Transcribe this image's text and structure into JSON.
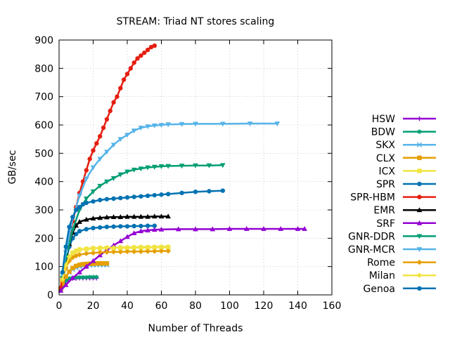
{
  "chart_data": {
    "type": "line",
    "title": "STREAM: Triad NT stores scaling",
    "xlabel": "Number of Threads",
    "ylabel": "GB/sec",
    "xlim": [
      0,
      160
    ],
    "ylim": [
      0,
      900
    ],
    "xticks": [
      0,
      20,
      40,
      60,
      80,
      100,
      120,
      140,
      160
    ],
    "yticks": [
      0,
      100,
      200,
      300,
      400,
      500,
      600,
      700,
      800,
      900
    ],
    "grid": true,
    "legend_position": "right",
    "series": [
      {
        "name": "HSW",
        "color": "#9400d3",
        "marker": "plus",
        "x": [
          1,
          2,
          4,
          6,
          8,
          10,
          12,
          14,
          16,
          18,
          20,
          22
        ],
        "y": [
          18,
          30,
          48,
          55,
          58,
          58,
          59,
          59,
          59,
          59,
          59,
          59
        ]
      },
      {
        "name": "BDW",
        "color": "#009e73",
        "marker": "star",
        "x": [
          1,
          2,
          4,
          6,
          8,
          10,
          12,
          14,
          16,
          18,
          20,
          22
        ],
        "y": [
          18,
          32,
          50,
          58,
          60,
          62,
          62,
          62,
          62,
          63,
          63,
          63
        ]
      },
      {
        "name": "SKX",
        "color": "#56b4e9",
        "marker": "x",
        "x": [
          1,
          2,
          4,
          6,
          8,
          10,
          12,
          14,
          16,
          18,
          20,
          22,
          24,
          26,
          28
        ],
        "y": [
          20,
          40,
          65,
          80,
          90,
          96,
          100,
          102,
          104,
          105,
          106,
          106,
          106,
          106,
          106
        ]
      },
      {
        "name": "CLX",
        "color": "#e69f00",
        "marker": "square",
        "x": [
          1,
          2,
          4,
          6,
          8,
          10,
          12,
          14,
          16,
          18,
          20,
          22,
          24,
          26,
          28
        ],
        "y": [
          20,
          40,
          65,
          82,
          95,
          102,
          106,
          108,
          109,
          110,
          110,
          111,
          111,
          111,
          111
        ]
      },
      {
        "name": "ICX",
        "color": "#f0e442",
        "marker": "square",
        "x": [
          2,
          4,
          6,
          8,
          10,
          12,
          16,
          20,
          24,
          28,
          32,
          36,
          40,
          44,
          48,
          52,
          56,
          60,
          64
        ],
        "y": [
          60,
          110,
          135,
          148,
          155,
          160,
          162,
          164,
          165,
          165,
          166,
          166,
          166,
          167,
          167,
          167,
          168,
          168,
          168
        ]
      },
      {
        "name": "SPR",
        "color": "#0072b2",
        "marker": "circle",
        "x": [
          2,
          4,
          6,
          8,
          10,
          12,
          16,
          20,
          24,
          28,
          32,
          36,
          40,
          44,
          48,
          52,
          56
        ],
        "y": [
          60,
          120,
          170,
          200,
          215,
          225,
          232,
          236,
          238,
          240,
          241,
          242,
          242,
          243,
          243,
          244,
          244
        ]
      },
      {
        "name": "SPR-HBM",
        "color": "#e51e10",
        "marker": "circle",
        "x": [
          1,
          2,
          4,
          6,
          8,
          10,
          12,
          14,
          16,
          18,
          20,
          22,
          24,
          26,
          28,
          30,
          32,
          34,
          36,
          38,
          40,
          42,
          44,
          46,
          48,
          50,
          52,
          54,
          56
        ],
        "y": [
          25,
          60,
          130,
          200,
          260,
          310,
          360,
          400,
          440,
          480,
          510,
          535,
          560,
          590,
          620,
          650,
          680,
          700,
          730,
          760,
          780,
          800,
          820,
          835,
          845,
          855,
          865,
          875,
          880
        ]
      },
      {
        "name": "EMR",
        "color": "#000000",
        "marker": "triangle",
        "x": [
          2,
          4,
          6,
          8,
          10,
          12,
          16,
          20,
          24,
          28,
          32,
          36,
          40,
          44,
          48,
          52,
          56,
          60,
          64
        ],
        "y": [
          60,
          120,
          180,
          220,
          245,
          258,
          266,
          270,
          272,
          274,
          275,
          275,
          276,
          276,
          276,
          276,
          277,
          277,
          277
        ]
      },
      {
        "name": "SRF",
        "color": "#9400d3",
        "marker": "triangle",
        "x": [
          1,
          4,
          8,
          12,
          16,
          20,
          24,
          28,
          32,
          36,
          40,
          44,
          48,
          52,
          56,
          60,
          70,
          80,
          90,
          100,
          110,
          120,
          130,
          140,
          144
        ],
        "y": [
          15,
          35,
          60,
          80,
          100,
          120,
          140,
          158,
          175,
          190,
          205,
          218,
          225,
          228,
          230,
          231,
          232,
          232,
          232,
          233,
          233,
          233,
          233,
          233,
          233
        ]
      },
      {
        "name": "GNR-DDR",
        "color": "#009e73",
        "marker": "triangle-down",
        "x": [
          2,
          4,
          8,
          12,
          16,
          20,
          24,
          28,
          32,
          36,
          40,
          44,
          48,
          52,
          56,
          60,
          64,
          72,
          80,
          88,
          96
        ],
        "y": [
          60,
          130,
          230,
          300,
          340,
          365,
          385,
          400,
          412,
          425,
          435,
          442,
          446,
          450,
          452,
          454,
          455,
          456,
          457,
          457,
          458
        ]
      },
      {
        "name": "GNR-MCR",
        "color": "#56b4e9",
        "marker": "triangle-down",
        "x": [
          2,
          4,
          8,
          12,
          16,
          20,
          24,
          28,
          32,
          36,
          40,
          44,
          48,
          52,
          56,
          60,
          64,
          72,
          80,
          96,
          112,
          128
        ],
        "y": [
          70,
          150,
          270,
          350,
          410,
          450,
          480,
          505,
          530,
          550,
          565,
          580,
          590,
          595,
          598,
          600,
          602,
          603,
          604,
          604,
          605,
          605
        ]
      },
      {
        "name": "Rome",
        "color": "#e69f00",
        "marker": "diamond",
        "x": [
          2,
          4,
          6,
          8,
          10,
          12,
          16,
          20,
          24,
          28,
          32,
          36,
          40,
          44,
          48,
          52,
          56,
          60,
          64
        ],
        "y": [
          50,
          95,
          120,
          132,
          138,
          142,
          146,
          148,
          150,
          151,
          152,
          152,
          153,
          153,
          153,
          154,
          154,
          155,
          155
        ]
      },
      {
        "name": "Milan",
        "color": "#f0e442",
        "marker": "diamond",
        "x": [
          2,
          4,
          6,
          8,
          10,
          12,
          16,
          20,
          24,
          28,
          32,
          36,
          40,
          44,
          48,
          52,
          56,
          60,
          64
        ],
        "y": [
          55,
          105,
          135,
          148,
          155,
          160,
          163,
          165,
          166,
          167,
          167,
          168,
          168,
          168,
          169,
          169,
          169,
          170,
          170
        ]
      },
      {
        "name": "Genoa",
        "color": "#0072b2",
        "marker": "circle",
        "x": [
          2,
          4,
          6,
          8,
          10,
          12,
          14,
          16,
          20,
          24,
          28,
          32,
          36,
          40,
          44,
          48,
          52,
          56,
          60,
          64,
          72,
          80,
          88,
          96
        ],
        "y": [
          80,
          170,
          240,
          275,
          300,
          310,
          320,
          325,
          330,
          335,
          338,
          340,
          342,
          344,
          346,
          348,
          350,
          352,
          354,
          356,
          360,
          364,
          366,
          368
        ]
      }
    ]
  }
}
